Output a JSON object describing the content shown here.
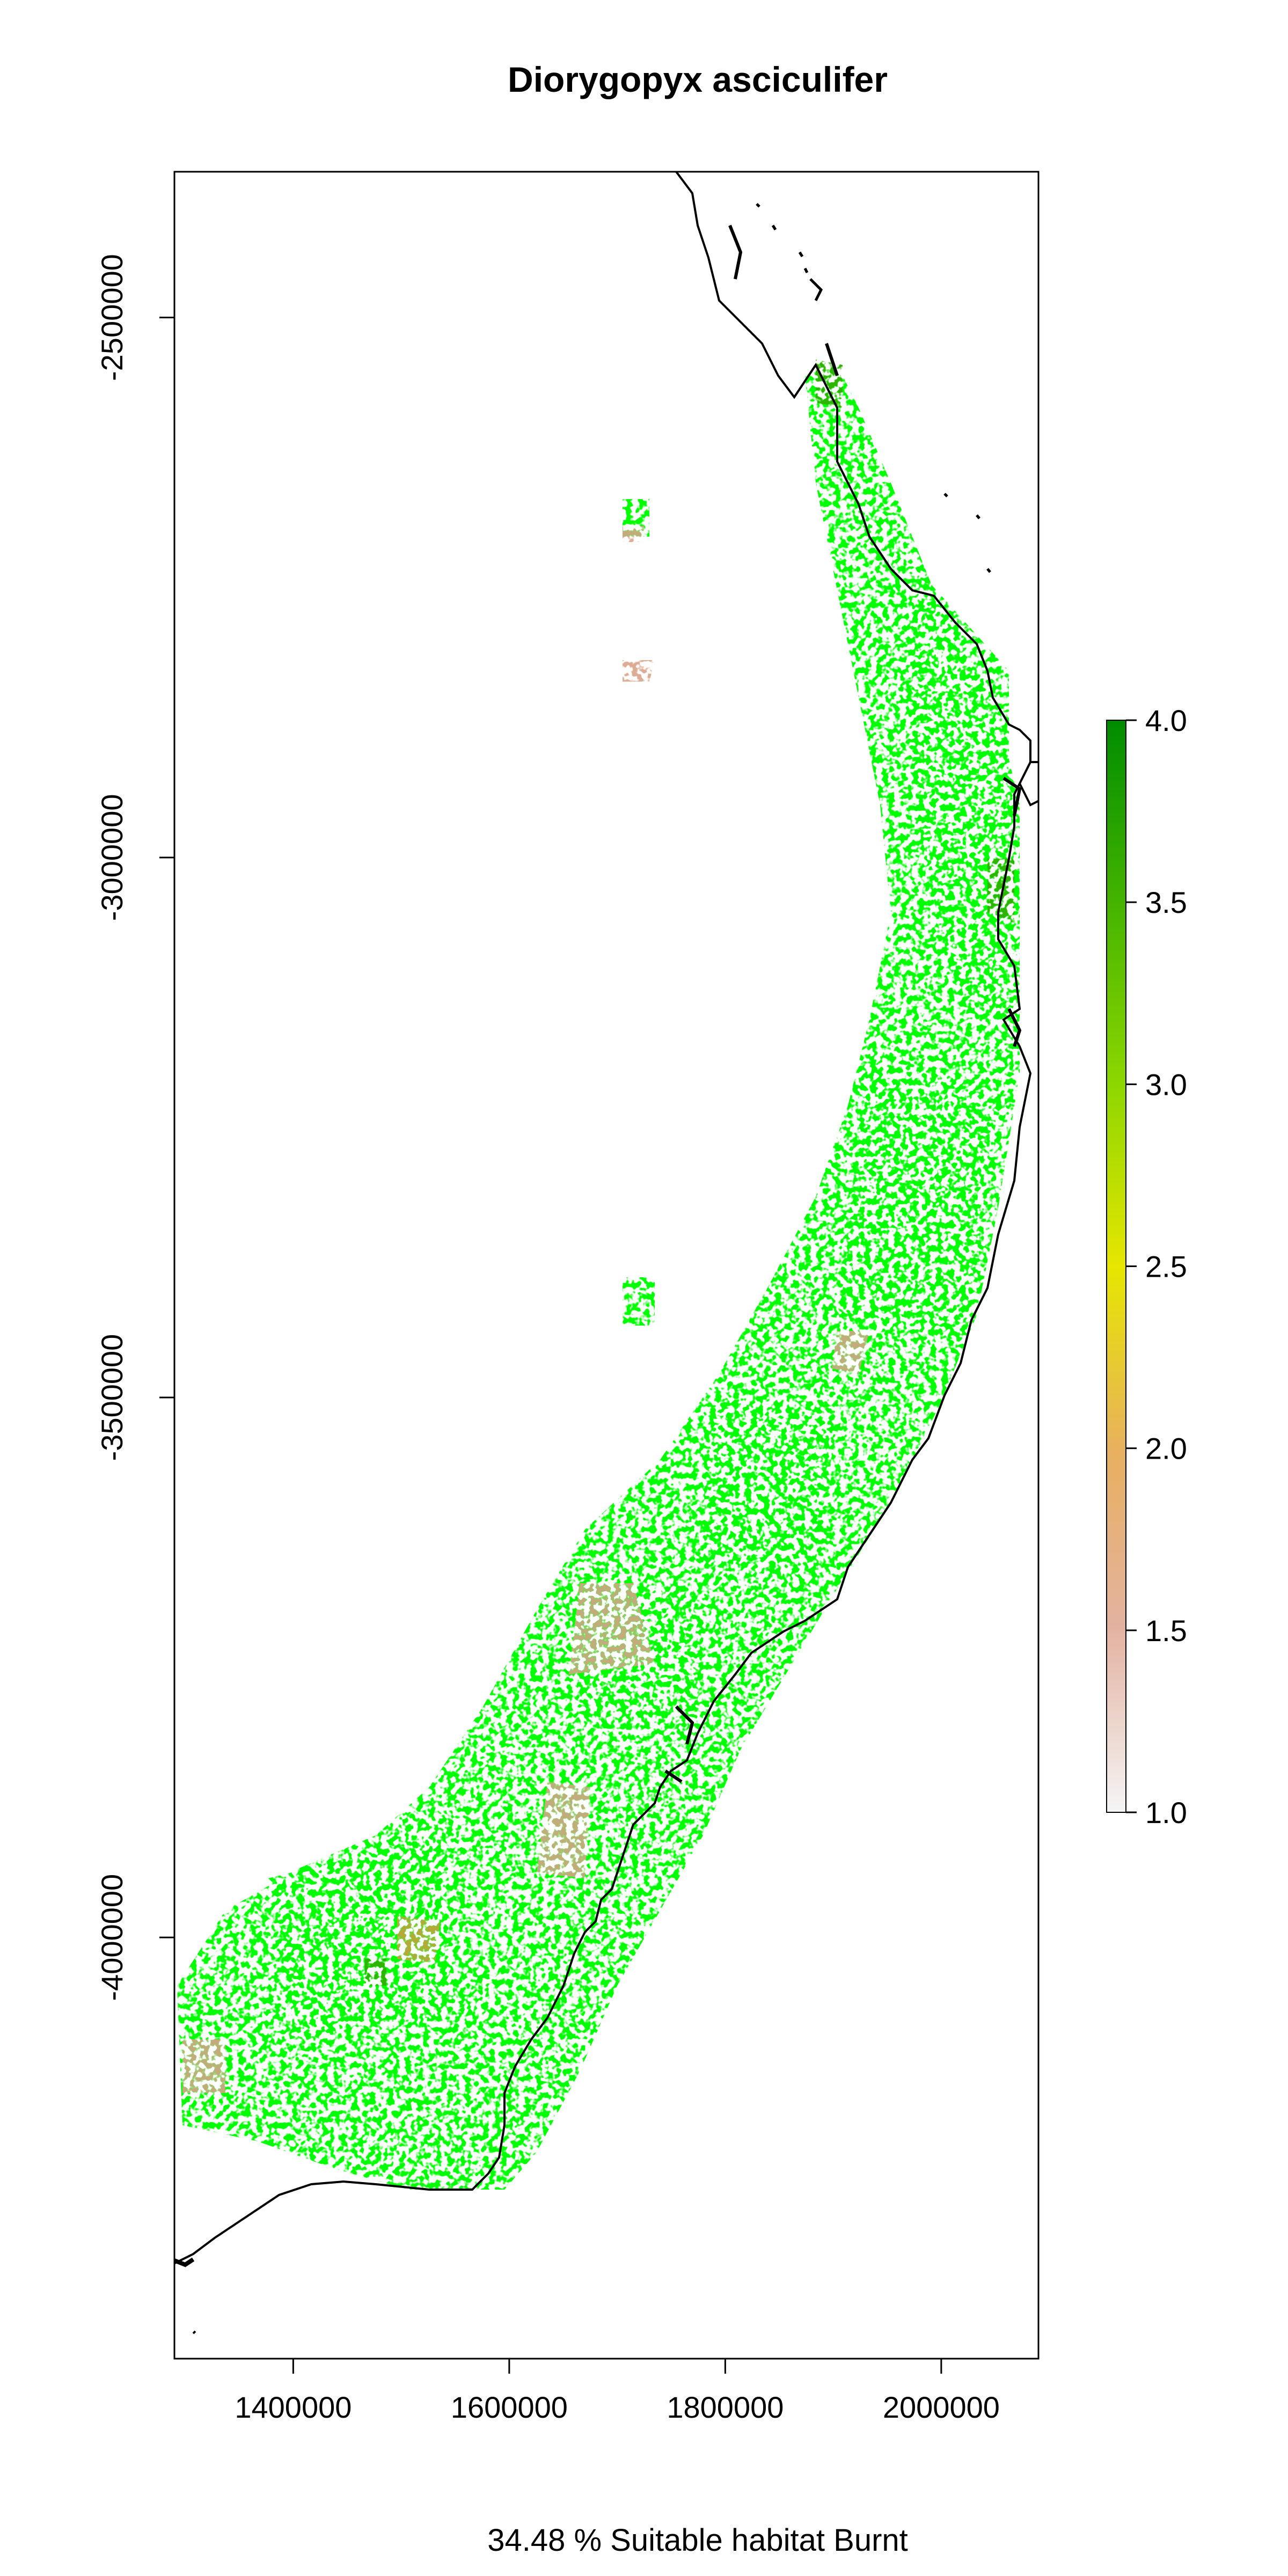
{
  "chart_data": {
    "type": "heatmap",
    "title": "Diorygopyx asciculifer",
    "subtitle": "34.48 % Suitable habitat Burnt",
    "xlabel": "",
    "ylabel": "",
    "x_ticks": [
      1400000,
      1600000,
      1800000,
      2000000
    ],
    "x_tick_labels": [
      "1400000",
      "1600000",
      "1800000",
      "2000000"
    ],
    "y_ticks": [
      -2500000,
      -3000000,
      -3500000,
      -4000000
    ],
    "y_tick_labels": [
      "-2500000",
      "-3000000",
      "-3500000",
      "-4000000"
    ],
    "xlim": [
      1290000,
      2090000
    ],
    "ylim": [
      -4390000,
      -2365000
    ],
    "legend": {
      "position": "right",
      "min": 1.0,
      "max": 4.0,
      "ticks": [
        "1.0",
        "1.5",
        "2.0",
        "2.5",
        "3.0",
        "3.5",
        "4.0"
      ],
      "colors": [
        "#f5f5f5",
        "#e3b2a0",
        "#e8b060",
        "#e6e600",
        "#8cd600",
        "#46b400",
        "#008c00"
      ]
    },
    "colors": {
      "suitable": "#00ff00",
      "burnt_low": "#d9a48a",
      "burnt_mid": "#c9a040",
      "dense": "#2db400",
      "coastline": "#000000"
    }
  }
}
